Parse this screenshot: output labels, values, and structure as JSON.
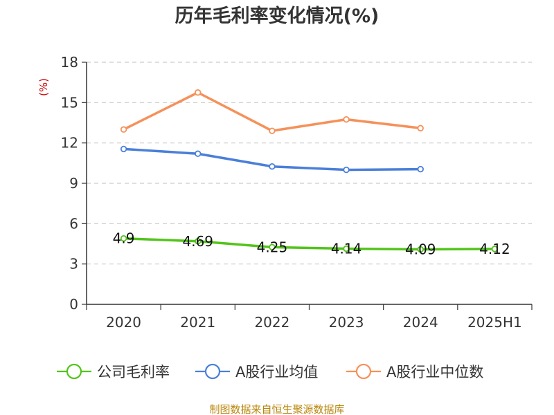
{
  "chart_data": {
    "type": "line",
    "title": "历年毛利率变化情况(%)",
    "ylabel": "(%)",
    "xlabel": "",
    "categories": [
      "2020",
      "2021",
      "2022",
      "2023",
      "2024",
      "2025H1"
    ],
    "ylim": [
      0,
      18
    ],
    "yticks": [
      "0",
      "3",
      "6",
      "9",
      "12",
      "15",
      "18"
    ],
    "grid": true,
    "legend_position": "bottom",
    "series": [
      {
        "name": "公司毛利率",
        "color": "#52c41a",
        "values": [
          4.9,
          4.69,
          4.25,
          4.14,
          4.09,
          4.12
        ],
        "labels": [
          "4.9",
          "4.69",
          "4.25",
          "4.14",
          "4.09",
          "4.12"
        ]
      },
      {
        "name": "A股行业均值",
        "color": "#4a7fd9",
        "values": [
          11.55,
          11.2,
          10.25,
          10.0,
          10.05,
          null
        ]
      },
      {
        "name": "A股行业中位数",
        "color": "#f5915a",
        "values": [
          13.0,
          15.75,
          12.9,
          13.75,
          13.1,
          null
        ]
      }
    ],
    "source": "制图数据来自恒生聚源数据库"
  }
}
